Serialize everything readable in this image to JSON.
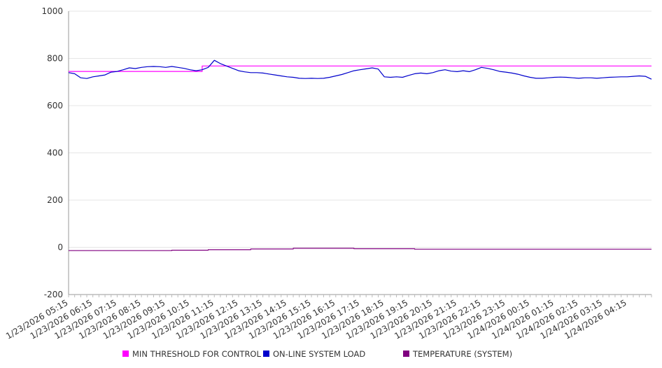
{
  "chart_data": {
    "type": "line",
    "title": "",
    "xlabel": "",
    "ylabel": "",
    "ylim": [
      -200,
      1000
    ],
    "yticks": [
      1000,
      800,
      600,
      400,
      200,
      0,
      -200
    ],
    "xlim": [
      "1/23/2026 05:15",
      "1/24/2026 05:15"
    ],
    "xtick_labels": [
      "1/23/2026 05:15",
      "1/23/2026 06:15",
      "1/23/2026 07:15",
      "1/23/2026 08:15",
      "1/23/2026 09:15",
      "1/23/2026 10:15",
      "1/23/2026 11:15",
      "1/23/2026 12:15",
      "1/23/2026 13:15",
      "1/23/2026 14:15",
      "1/23/2026 15:15",
      "1/23/2026 16:15",
      "1/23/2026 17:15",
      "1/23/2026 18:15",
      "1/23/2026 19:15",
      "1/23/2026 20:15",
      "1/23/2026 21:15",
      "1/23/2026 22:15",
      "1/23/2026 23:15",
      "1/24/2026 00:15",
      "1/24/2026 01:15",
      "1/24/2026 02:15",
      "1/24/2026 03:15",
      "1/24/2026 04:15"
    ],
    "grid": true,
    "legend_position": "bottom",
    "series": [
      {
        "name": "MIN THRESHOLD FOR CONTROL",
        "color": "#ff00ff",
        "step": true,
        "points": [
          [
            "1/23/2026 05:15",
            745
          ],
          [
            "1/23/2026 10:45",
            745
          ],
          [
            "1/23/2026 10:45",
            768
          ],
          [
            "1/24/2026 05:15",
            768
          ]
        ]
      },
      {
        "name": "ON-LINE SYSTEM LOAD",
        "color": "#0000cc",
        "step": false,
        "points": [
          [
            "1/23/2026 05:15",
            740
          ],
          [
            "1/23/2026 05:30",
            735
          ],
          [
            "1/23/2026 05:45",
            718
          ],
          [
            "1/23/2026 06:00",
            715
          ],
          [
            "1/23/2026 06:15",
            722
          ],
          [
            "1/23/2026 06:30",
            726
          ],
          [
            "1/23/2026 06:45",
            730
          ],
          [
            "1/23/2026 07:00",
            742
          ],
          [
            "1/23/2026 07:15",
            745
          ],
          [
            "1/23/2026 07:30",
            752
          ],
          [
            "1/23/2026 07:45",
            760
          ],
          [
            "1/23/2026 08:00",
            757
          ],
          [
            "1/23/2026 08:15",
            762
          ],
          [
            "1/23/2026 08:30",
            765
          ],
          [
            "1/23/2026 08:45",
            766
          ],
          [
            "1/23/2026 09:00",
            765
          ],
          [
            "1/23/2026 09:15",
            762
          ],
          [
            "1/23/2026 09:30",
            766
          ],
          [
            "1/23/2026 09:45",
            762
          ],
          [
            "1/23/2026 10:00",
            758
          ],
          [
            "1/23/2026 10:15",
            752
          ],
          [
            "1/23/2026 10:30",
            748
          ],
          [
            "1/23/2026 10:45",
            752
          ],
          [
            "1/23/2026 11:00",
            762
          ],
          [
            "1/23/2026 11:15",
            792
          ],
          [
            "1/23/2026 11:30",
            778
          ],
          [
            "1/23/2026 11:45",
            768
          ],
          [
            "1/23/2026 12:00",
            758
          ],
          [
            "1/23/2026 12:15",
            748
          ],
          [
            "1/23/2026 12:30",
            743
          ],
          [
            "1/23/2026 12:45",
            740
          ],
          [
            "1/23/2026 13:00",
            740
          ],
          [
            "1/23/2026 13:15",
            738
          ],
          [
            "1/23/2026 13:30",
            734
          ],
          [
            "1/23/2026 13:45",
            730
          ],
          [
            "1/23/2026 14:00",
            726
          ],
          [
            "1/23/2026 14:15",
            722
          ],
          [
            "1/23/2026 14:30",
            720
          ],
          [
            "1/23/2026 14:45",
            716
          ],
          [
            "1/23/2026 15:00",
            715
          ],
          [
            "1/23/2026 15:15",
            716
          ],
          [
            "1/23/2026 15:30",
            715
          ],
          [
            "1/23/2026 15:45",
            716
          ],
          [
            "1/23/2026 16:00",
            720
          ],
          [
            "1/23/2026 16:15",
            726
          ],
          [
            "1/23/2026 16:30",
            732
          ],
          [
            "1/23/2026 16:45",
            740
          ],
          [
            "1/23/2026 17:00",
            748
          ],
          [
            "1/23/2026 17:15",
            752
          ],
          [
            "1/23/2026 17:30",
            756
          ],
          [
            "1/23/2026 17:45",
            760
          ],
          [
            "1/23/2026 18:00",
            755
          ],
          [
            "1/23/2026 18:15",
            722
          ],
          [
            "1/23/2026 18:30",
            720
          ],
          [
            "1/23/2026 18:45",
            722
          ],
          [
            "1/23/2026 19:00",
            720
          ],
          [
            "1/23/2026 19:15",
            728
          ],
          [
            "1/23/2026 19:30",
            735
          ],
          [
            "1/23/2026 19:45",
            738
          ],
          [
            "1/23/2026 20:00",
            735
          ],
          [
            "1/23/2026 20:15",
            740
          ],
          [
            "1/23/2026 20:30",
            748
          ],
          [
            "1/23/2026 20:45",
            752
          ],
          [
            "1/23/2026 21:00",
            746
          ],
          [
            "1/23/2026 21:15",
            744
          ],
          [
            "1/23/2026 21:30",
            748
          ],
          [
            "1/23/2026 21:45",
            744
          ],
          [
            "1/23/2026 22:00",
            752
          ],
          [
            "1/23/2026 22:15",
            762
          ],
          [
            "1/23/2026 22:30",
            758
          ],
          [
            "1/23/2026 22:45",
            752
          ],
          [
            "1/23/2026 23:00",
            745
          ],
          [
            "1/23/2026 23:15",
            742
          ],
          [
            "1/23/2026 23:30",
            738
          ],
          [
            "1/23/2026 23:45",
            733
          ],
          [
            "1/24/2026 00:00",
            726
          ],
          [
            "1/24/2026 00:15",
            720
          ],
          [
            "1/24/2026 00:30",
            716
          ],
          [
            "1/24/2026 00:45",
            716
          ],
          [
            "1/24/2026 01:00",
            718
          ],
          [
            "1/24/2026 01:15",
            720
          ],
          [
            "1/24/2026 01:30",
            721
          ],
          [
            "1/24/2026 01:45",
            720
          ],
          [
            "1/24/2026 02:00",
            718
          ],
          [
            "1/24/2026 02:15",
            716
          ],
          [
            "1/24/2026 02:30",
            718
          ],
          [
            "1/24/2026 02:45",
            718
          ],
          [
            "1/24/2026 03:00",
            716
          ],
          [
            "1/24/2026 03:15",
            718
          ],
          [
            "1/24/2026 03:30",
            720
          ],
          [
            "1/24/2026 03:45",
            721
          ],
          [
            "1/24/2026 04:00",
            722
          ],
          [
            "1/24/2026 04:15",
            722
          ],
          [
            "1/24/2026 04:30",
            724
          ],
          [
            "1/24/2026 04:45",
            726
          ],
          [
            "1/24/2026 05:00",
            724
          ],
          [
            "1/24/2026 05:15",
            712
          ]
        ]
      },
      {
        "name": "TEMPERATURE (SYSTEM)",
        "color": "#800080",
        "step": true,
        "points": [
          [
            "1/23/2026 05:15",
            -14
          ],
          [
            "1/23/2026 09:30",
            -12
          ],
          [
            "1/23/2026 11:00",
            -10
          ],
          [
            "1/23/2026 12:45",
            -7
          ],
          [
            "1/23/2026 14:30",
            -4
          ],
          [
            "1/23/2026 17:00",
            -6
          ],
          [
            "1/23/2026 19:30",
            -8
          ],
          [
            "1/24/2026 05:15",
            -8
          ]
        ]
      }
    ]
  }
}
